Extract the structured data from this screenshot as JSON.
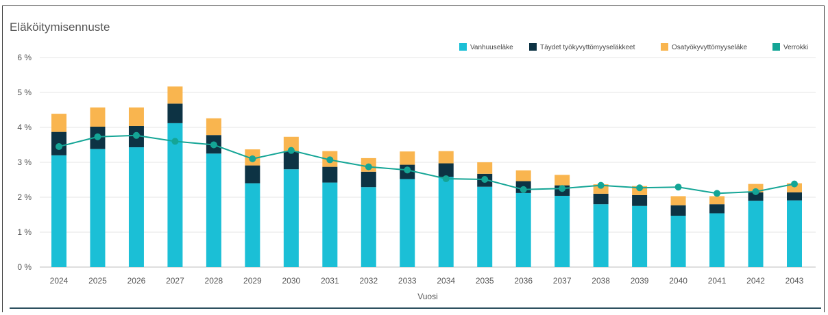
{
  "chart_data": {
    "type": "bar",
    "title": "Eläköitymisennuste",
    "xlabel": "Vuosi",
    "ylabel": "",
    "ylim": [
      0,
      6
    ],
    "y_ticks": [
      "0 %",
      "1 %",
      "2 %",
      "3 %",
      "4 %",
      "5 %",
      "6 %"
    ],
    "stacked": true,
    "grid": true,
    "legend_position": "top-right",
    "categories": [
      "2024",
      "2025",
      "2026",
      "2027",
      "2028",
      "2029",
      "2030",
      "2031",
      "2032",
      "2033",
      "2034",
      "2035",
      "2036",
      "2037",
      "2038",
      "2039",
      "2040",
      "2041",
      "2042",
      "2043"
    ],
    "series": [
      {
        "name": "Vanhuuseläke",
        "kind": "bar",
        "color": "#1bbfd6",
        "values": [
          3.2,
          3.38,
          3.43,
          4.12,
          3.25,
          2.4,
          2.8,
          2.42,
          2.29,
          2.52,
          2.58,
          2.3,
          2.12,
          2.04,
          1.8,
          1.75,
          1.47,
          1.54,
          1.9,
          1.91
        ]
      },
      {
        "name": "Täydet työkyvyttömyyseläkkeet",
        "kind": "bar",
        "color": "#0d3344",
        "values": [
          0.67,
          0.64,
          0.61,
          0.56,
          0.53,
          0.51,
          0.52,
          0.45,
          0.44,
          0.41,
          0.39,
          0.37,
          0.34,
          0.3,
          0.3,
          0.31,
          0.3,
          0.26,
          0.24,
          0.23
        ]
      },
      {
        "name": "Osatyökyvyttömyyseläke",
        "kind": "bar",
        "color": "#f9b54f",
        "values": [
          0.52,
          0.55,
          0.53,
          0.49,
          0.48,
          0.46,
          0.41,
          0.45,
          0.39,
          0.38,
          0.35,
          0.33,
          0.31,
          0.3,
          0.27,
          0.26,
          0.26,
          0.23,
          0.24,
          0.26
        ]
      },
      {
        "name": "Verrokki",
        "kind": "line",
        "color": "#14a596",
        "values": [
          3.45,
          3.73,
          3.77,
          3.6,
          3.5,
          3.1,
          3.34,
          3.07,
          2.87,
          2.78,
          2.53,
          2.51,
          2.22,
          2.25,
          2.34,
          2.27,
          2.29,
          2.11,
          2.16,
          2.38
        ]
      }
    ]
  }
}
